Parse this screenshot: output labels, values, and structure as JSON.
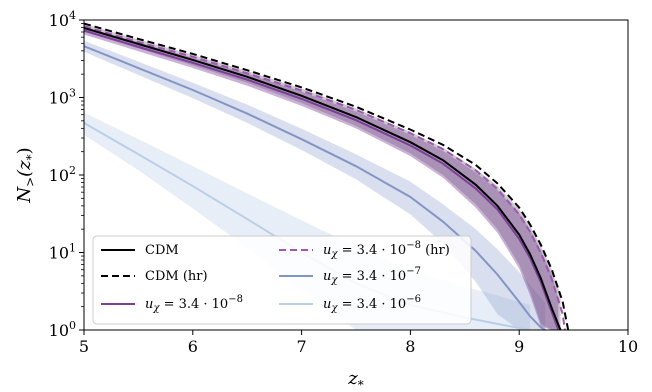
{
  "chart_data": {
    "type": "line",
    "xlabel": "z*",
    "ylabel": "N>(z*)",
    "xlim": [
      5,
      10
    ],
    "ylim": [
      1,
      10000
    ],
    "yscale": "log",
    "grid": false,
    "legend_placement": "lower-left",
    "x_ticks": [
      "5",
      "6",
      "7",
      "8",
      "9",
      "10"
    ],
    "y_ticks": [
      {
        "base": "10",
        "exp": "0",
        "value": 1
      },
      {
        "base": "10",
        "exp": "1",
        "value": 10
      },
      {
        "base": "10",
        "exp": "2",
        "value": 100
      },
      {
        "base": "10",
        "exp": "3",
        "value": 1000
      },
      {
        "base": "10",
        "exp": "4",
        "value": 10000
      }
    ],
    "series": [
      {
        "name": "CDM",
        "color": "#000000",
        "dash": "solid",
        "band_color": "#8a8a8a",
        "x": [
          5.0,
          5.5,
          6.0,
          6.5,
          7.0,
          7.5,
          8.0,
          8.3,
          8.6,
          8.8,
          9.0,
          9.1,
          9.2,
          9.3,
          9.38
        ],
        "y": [
          7900,
          4900,
          3050,
          1850,
          1050,
          560,
          265,
          155,
          75,
          40,
          17,
          9.5,
          4.6,
          1.9,
          1.0
        ],
        "band_low": [
          7000,
          4300,
          2600,
          1550,
          850,
          430,
          190,
          100,
          42,
          20,
          7.0,
          3.2,
          1.2,
          1.0,
          1.0
        ],
        "band_high": [
          8900,
          5600,
          3550,
          2200,
          1300,
          720,
          360,
          225,
          120,
          72,
          36,
          22,
          12,
          6.0,
          2.8
        ]
      },
      {
        "name": "CDM (hr)",
        "color": "#000000",
        "dash": "dashed",
        "x": [
          5.0,
          5.5,
          6.0,
          6.5,
          7.0,
          7.5,
          8.0,
          8.3,
          8.6,
          8.8,
          9.0,
          9.1,
          9.2,
          9.3,
          9.4,
          9.45
        ],
        "y": [
          9000,
          5700,
          3650,
          2250,
          1350,
          760,
          385,
          245,
          135,
          78,
          38,
          23,
          12.5,
          6.0,
          2.3,
          1.0
        ]
      },
      {
        "name": "uχ = 3.4·10⁻⁸",
        "label_parts": {
          "sym": "u",
          "sub": "χ",
          "mid": " = 3.4 · 10",
          "exp": "−8",
          "suffix": ""
        },
        "color": "#7b3f98",
        "dash": "solid",
        "band_color": "#7b3f98",
        "x": [
          5.0,
          5.5,
          6.0,
          6.5,
          7.0,
          7.5,
          8.0,
          8.3,
          8.6,
          8.8,
          9.0,
          9.1,
          9.2,
          9.3,
          9.36
        ],
        "y": [
          7300,
          4500,
          2800,
          1700,
          960,
          510,
          240,
          140,
          67,
          36,
          15,
          8.5,
          4.1,
          1.7,
          1.0
        ],
        "band_low": [
          6500,
          3950,
          2400,
          1420,
          780,
          400,
          175,
          92,
          38,
          18,
          6.2,
          2.8,
          1.1,
          1.0,
          1.0
        ],
        "band_high": [
          8200,
          5150,
          3250,
          2030,
          1190,
          660,
          330,
          205,
          108,
          64,
          32,
          19.5,
          10.5,
          5.2,
          2.5
        ]
      },
      {
        "name": "uχ = 3.4·10⁻⁸ (hr)",
        "label_parts": {
          "sym": "u",
          "sub": "χ",
          "mid": " = 3.4 · 10",
          "exp": "−8",
          "suffix": " (hr)"
        },
        "color": "#a256b8",
        "dash": "dashed",
        "x": [
          5.0,
          5.5,
          6.0,
          6.5,
          7.0,
          7.5,
          8.0,
          8.3,
          8.6,
          8.8,
          9.0,
          9.1,
          9.2,
          9.3,
          9.4,
          9.42
        ],
        "y": [
          8300,
          5200,
          3350,
          2050,
          1230,
          690,
          345,
          215,
          115,
          66,
          31,
          18.5,
          9.8,
          4.5,
          1.6,
          1.0
        ]
      },
      {
        "name": "uχ = 3.4·10⁻⁷",
        "label_parts": {
          "sym": "u",
          "sub": "χ",
          "mid": " = 3.4 · 10",
          "exp": "−7",
          "suffix": ""
        },
        "color": "#8296c6",
        "dash": "solid",
        "band_color": "#8296c6",
        "x": [
          5.0,
          5.5,
          6.0,
          6.5,
          7.0,
          7.5,
          8.0,
          8.3,
          8.6,
          8.8,
          9.0,
          9.1,
          9.2,
          9.24
        ],
        "y": [
          4600,
          2400,
          1250,
          620,
          290,
          130,
          52,
          25,
          10.5,
          5.2,
          2.3,
          1.5,
          1.08,
          1.0
        ],
        "band_low": [
          3900,
          1950,
          980,
          470,
          210,
          88,
          31,
          13,
          4.2,
          1.6,
          1.0,
          1.0,
          1.0,
          1.0
        ],
        "band_high": [
          5400,
          2900,
          1550,
          810,
          395,
          185,
          82,
          42,
          20,
          11,
          5.6,
          3.8,
          2.6,
          2.2
        ]
      },
      {
        "name": "uχ = 3.4·10⁻⁶",
        "label_parts": {
          "sym": "u",
          "sub": "χ",
          "mid": " = 3.4 · 10",
          "exp": "−6",
          "suffix": ""
        },
        "color": "#b9cfe8",
        "dash": "solid",
        "band_color": "#b9cfe8",
        "x": [
          5.0,
          5.5,
          6.0,
          6.5,
          7.0,
          7.5,
          8.0,
          8.5,
          8.8,
          9.0,
          9.1
        ],
        "y": [
          470,
          185,
          72,
          27,
          10,
          4.0,
          2.1,
          1.45,
          1.2,
          1.06,
          1.0
        ],
        "band_low": [
          330,
          115,
          37,
          11.5,
          3.3,
          1.0,
          1.0,
          1.0,
          1.0,
          1.0,
          1.0
        ],
        "band_high": [
          640,
          290,
          130,
          58,
          26,
          12,
          6.0,
          3.6,
          2.8,
          2.3,
          2.1
        ]
      }
    ],
    "legend": {
      "columns": [
        [
          "CDM",
          "CDM (hr)",
          "uχ = 3.4·10⁻⁸"
        ],
        [
          "uχ = 3.4·10⁻⁸ (hr)",
          "uχ = 3.4·10⁻⁷",
          "uχ = 3.4·10⁻⁶"
        ]
      ]
    }
  }
}
